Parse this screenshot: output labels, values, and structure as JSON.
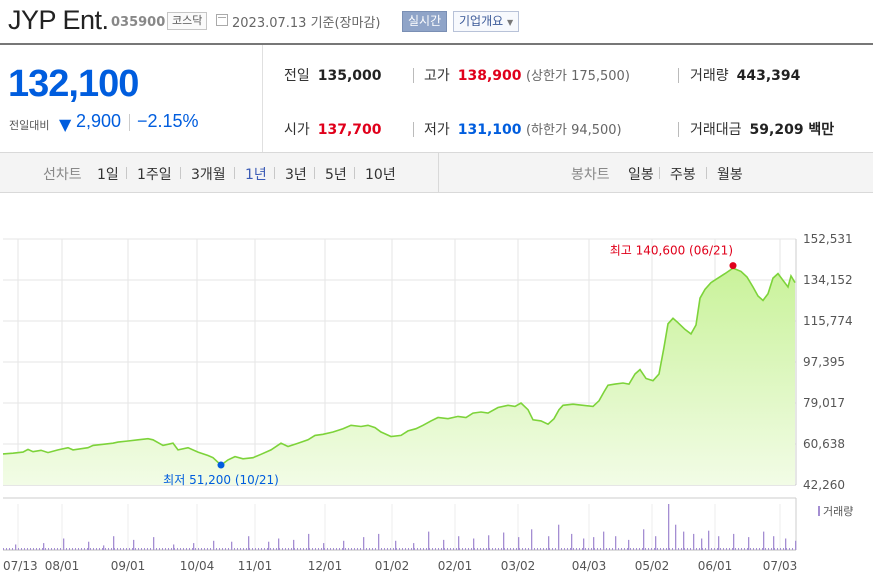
{
  "header": {
    "company": "JYP Ent.",
    "code": "035900",
    "market": "코스닥",
    "date": "2023.07.13 기준(장마감)",
    "realtime": "실시간",
    "company_info": "기업개요"
  },
  "quote": {
    "price": "132,100",
    "change_label": "전일대비",
    "change_arrow": "▼",
    "change_value": "2,900",
    "change_pct": "−2.15%",
    "prev_close_label": "전일",
    "prev_close": "135,000",
    "high_label": "고가",
    "high": "138,900",
    "upper_limit": "(상한가 175,500)",
    "volume_label": "거래량",
    "volume": "443,394",
    "open_label": "시가",
    "open": "137,700",
    "low_label": "저가",
    "low": "131,100",
    "lower_limit": "(하한가 94,500)",
    "amount_label": "거래대금",
    "amount": "59,209 백만"
  },
  "tabs": {
    "line_group": "선차트",
    "line_items": [
      "1일",
      "1주일",
      "3개월",
      "1년",
      "3년",
      "5년",
      "10년"
    ],
    "selected": "1년",
    "candle_group": "봉차트",
    "candle_items": [
      "일봉",
      "주봉",
      "월봉"
    ]
  },
  "colors": {
    "up": "#e0001b",
    "down": "#005dde",
    "line": "#7dd33a",
    "fill_top": "#c9f29a",
    "fill_bottom": "#f2fce6",
    "volume": "#a48ed2"
  },
  "chart_data": {
    "type": "area",
    "x_ticks": [
      "07/13",
      "08/01",
      "09/01",
      "10/04",
      "11/01",
      "12/01",
      "01/02",
      "02/01",
      "03/02",
      "04/03",
      "05/02",
      "06/01",
      "07/03"
    ],
    "y_ticks": [
      "152,531",
      "134,152",
      "115,774",
      "97,395",
      "79,017",
      "60,638",
      "42,260"
    ],
    "ylim": [
      42260,
      152531
    ],
    "max_label": "최고 140,600 (06/21)",
    "min_label": "최저 51,200 (10/21)",
    "max_point": {
      "date": "06/21",
      "value": 140600
    },
    "min_point": {
      "date": "10/21",
      "value": 51200
    },
    "volume_label": "거래량",
    "grid": true,
    "series": [
      {
        "values": [
          [
            0,
            56200
          ],
          [
            10,
            56500
          ],
          [
            20,
            57000
          ],
          [
            25,
            58200
          ],
          [
            30,
            57200
          ],
          [
            38,
            57800
          ],
          [
            45,
            56800
          ],
          [
            55,
            58000
          ],
          [
            65,
            59000
          ],
          [
            70,
            58000
          ],
          [
            85,
            59000
          ],
          [
            90,
            60000
          ],
          [
            100,
            60500
          ],
          [
            110,
            61000
          ],
          [
            115,
            61500
          ],
          [
            125,
            62000
          ],
          [
            135,
            62500
          ],
          [
            145,
            63000
          ],
          [
            150,
            62500
          ],
          [
            160,
            60000
          ],
          [
            170,
            61000
          ],
          [
            175,
            58000
          ],
          [
            185,
            59000
          ],
          [
            195,
            57000
          ],
          [
            205,
            55500
          ],
          [
            210,
            54500
          ],
          [
            218,
            51200
          ],
          [
            225,
            53500
          ],
          [
            232,
            55000
          ],
          [
            240,
            54000
          ],
          [
            250,
            54500
          ],
          [
            258,
            56000
          ],
          [
            268,
            58000
          ],
          [
            278,
            61000
          ],
          [
            285,
            59500
          ],
          [
            295,
            61000
          ],
          [
            305,
            62500
          ],
          [
            312,
            64500
          ],
          [
            320,
            65000
          ],
          [
            330,
            66000
          ],
          [
            340,
            67500
          ],
          [
            348,
            69000
          ],
          [
            358,
            68500
          ],
          [
            365,
            69000
          ],
          [
            372,
            68000
          ],
          [
            378,
            66000
          ],
          [
            388,
            64000
          ],
          [
            398,
            64500
          ],
          [
            405,
            66500
          ],
          [
            413,
            67500
          ],
          [
            420,
            69000
          ],
          [
            428,
            71000
          ],
          [
            435,
            72500
          ],
          [
            445,
            72000
          ],
          [
            455,
            73000
          ],
          [
            463,
            72500
          ],
          [
            470,
            74500
          ],
          [
            478,
            75000
          ],
          [
            485,
            74500
          ],
          [
            495,
            77000
          ],
          [
            505,
            78000
          ],
          [
            512,
            77500
          ],
          [
            518,
            79000
          ],
          [
            525,
            76000
          ],
          [
            530,
            71500
          ],
          [
            538,
            71000
          ],
          [
            545,
            69500
          ],
          [
            551,
            72000
          ],
          [
            556,
            76000
          ],
          [
            560,
            78000
          ],
          [
            570,
            78500
          ],
          [
            580,
            78000
          ],
          [
            590,
            77500
          ],
          [
            596,
            80000
          ],
          [
            601,
            84000
          ],
          [
            605,
            87000
          ],
          [
            612,
            87500
          ],
          [
            620,
            88000
          ],
          [
            626,
            87500
          ],
          [
            632,
            92000
          ],
          [
            637,
            94000
          ],
          [
            643,
            90000
          ],
          [
            650,
            89000
          ],
          [
            656,
            92000
          ],
          [
            661,
            104000
          ],
          [
            665,
            114500
          ],
          [
            670,
            117000
          ],
          [
            675,
            115000
          ],
          [
            682,
            112000
          ],
          [
            688,
            110000
          ],
          [
            693,
            114000
          ],
          [
            697,
            126000
          ],
          [
            702,
            130000
          ],
          [
            708,
            133000
          ],
          [
            715,
            135000
          ],
          [
            722,
            137000
          ],
          [
            730,
            139500
          ],
          [
            738,
            138000
          ],
          [
            744,
            135500
          ],
          [
            750,
            131000
          ],
          [
            755,
            127000
          ],
          [
            760,
            125000
          ],
          [
            765,
            128000
          ],
          [
            770,
            135000
          ],
          [
            775,
            137000
          ],
          [
            780,
            134000
          ],
          [
            785,
            131000
          ],
          [
            788,
            136000
          ],
          [
            792,
            133000
          ]
        ]
      }
    ],
    "volume_bars": [
      [
        12,
        0.12
      ],
      [
        40,
        0.15
      ],
      [
        60,
        0.25
      ],
      [
        85,
        0.18
      ],
      [
        100,
        0.1
      ],
      [
        110,
        0.3
      ],
      [
        130,
        0.22
      ],
      [
        150,
        0.28
      ],
      [
        170,
        0.12
      ],
      [
        190,
        0.15
      ],
      [
        210,
        0.2
      ],
      [
        228,
        0.18
      ],
      [
        245,
        0.3
      ],
      [
        265,
        0.18
      ],
      [
        275,
        0.25
      ],
      [
        290,
        0.22
      ],
      [
        305,
        0.35
      ],
      [
        320,
        0.15
      ],
      [
        340,
        0.2
      ],
      [
        360,
        0.28
      ],
      [
        375,
        0.35
      ],
      [
        392,
        0.2
      ],
      [
        410,
        0.15
      ],
      [
        425,
        0.4
      ],
      [
        440,
        0.22
      ],
      [
        455,
        0.3
      ],
      [
        470,
        0.25
      ],
      [
        485,
        0.32
      ],
      [
        500,
        0.38
      ],
      [
        515,
        0.28
      ],
      [
        528,
        0.45
      ],
      [
        545,
        0.3
      ],
      [
        555,
        0.55
      ],
      [
        568,
        0.35
      ],
      [
        580,
        0.25
      ],
      [
        590,
        0.28
      ],
      [
        600,
        0.4
      ],
      [
        612,
        0.3
      ],
      [
        625,
        0.22
      ],
      [
        640,
        0.45
      ],
      [
        652,
        0.3
      ],
      [
        665,
        1.0
      ],
      [
        672,
        0.55
      ],
      [
        680,
        0.4
      ],
      [
        690,
        0.35
      ],
      [
        698,
        0.25
      ],
      [
        705,
        0.42
      ],
      [
        715,
        0.3
      ],
      [
        730,
        0.35
      ],
      [
        745,
        0.28
      ],
      [
        760,
        0.4
      ],
      [
        770,
        0.3
      ],
      [
        782,
        0.25
      ],
      [
        792,
        0.2
      ]
    ]
  }
}
